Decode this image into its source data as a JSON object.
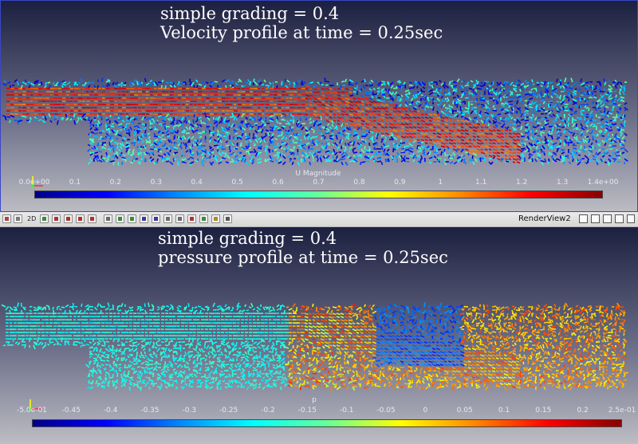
{
  "top_view": {
    "title_line1": "simple grading = 0.4",
    "title_line2": "Velocity profile at time = 0.25sec",
    "colorbar": {
      "title": "U Magnitude",
      "ticks": [
        "0.0e+00",
        "0.1",
        "0.2",
        "0.3",
        "0.4",
        "0.5",
        "0.6",
        "0.7",
        "0.8",
        "0.9",
        "1",
        "1.1",
        "1.2",
        "1.3",
        "1.4e+00"
      ],
      "colormap": [
        "#000088",
        "#0000ff",
        "#0088ff",
        "#00ffff",
        "#66ff99",
        "#ffff00",
        "#ff8800",
        "#ff0000",
        "#880000"
      ]
    }
  },
  "toolbar": {
    "two_d_label": "2D",
    "view_name": "RenderView2",
    "icons": [
      "split-horizontal-icon",
      "split-vertical-icon",
      "maximize-icon",
      "close-view-icon"
    ]
  },
  "bottom_view": {
    "title_line1": "simple grading = 0.4",
    "title_line2": "pressure profile at time = 0.25sec",
    "colorbar": {
      "title": "p",
      "ticks": [
        "-5.0e-01",
        "-0.45",
        "-0.4",
        "-0.35",
        "-0.3",
        "-0.25",
        "-0.2",
        "-0.15",
        "-0.1",
        "-0.05",
        "0",
        "0.05",
        "0.1",
        "0.15",
        "0.2",
        "2.5e-01"
      ],
      "colormap": [
        "#000088",
        "#0000ff",
        "#0088ff",
        "#00ffff",
        "#66ff99",
        "#ffff00",
        "#ff8800",
        "#ff0000",
        "#880000"
      ]
    }
  },
  "colors": {
    "view_bg_top": "#2a2f4e",
    "view_bg_bottom": "#c4c4c8",
    "active_view_border": "#3a47c8"
  }
}
